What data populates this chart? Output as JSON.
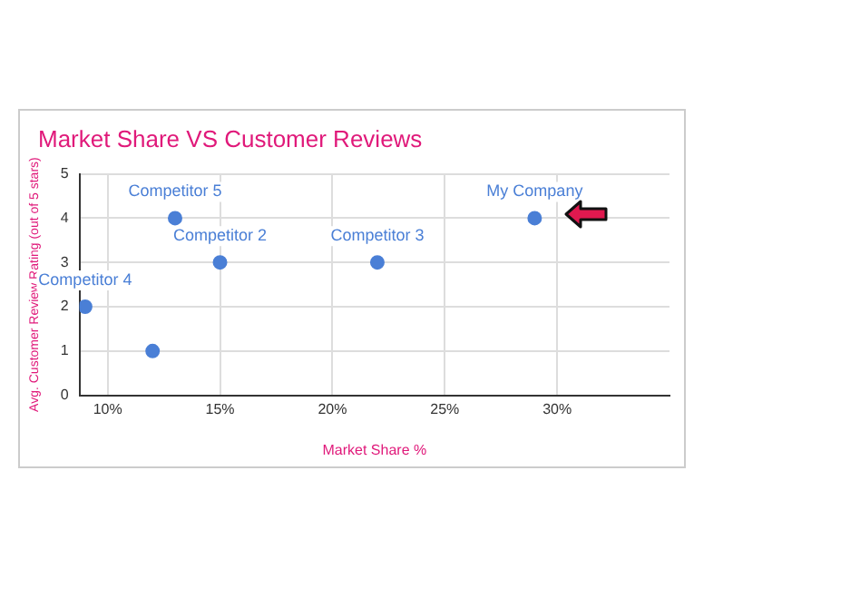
{
  "chart_data": {
    "type": "scatter",
    "title": "Market Share VS Customer Reviews",
    "xlabel": "Market Share %",
    "ylabel": "Avg. Customer Review Rating (out of 5 stars)",
    "x": [
      9,
      12,
      13,
      15,
      22,
      29
    ],
    "series": [
      {
        "color": "#4a7fd6",
        "values": [
          2,
          1,
          4,
          3,
          3,
          4
        ]
      }
    ],
    "annotations": [
      {
        "text": "Competitor 4",
        "x": 9,
        "y": 2
      },
      {
        "text": "Competitor 5",
        "x": 13,
        "y": 4
      },
      {
        "text": "Competitor 2",
        "x": 15,
        "y": 3
      },
      {
        "text": "Competitor 3",
        "x": 22,
        "y": 3
      },
      {
        "text": "My Company",
        "x": 29,
        "y": 4
      }
    ],
    "xlim": [
      8.75,
      35
    ],
    "xticks": [
      {
        "value": 10,
        "label": "10%"
      },
      {
        "value": 15,
        "label": "15%"
      },
      {
        "value": 20,
        "label": "20%"
      },
      {
        "value": 25,
        "label": "25%"
      },
      {
        "value": 30,
        "label": "30%"
      }
    ],
    "ylim": [
      0,
      5
    ],
    "yticks": [
      0,
      1,
      2,
      3,
      4,
      5
    ],
    "grid": true,
    "marker": "circle",
    "legend": false
  }
}
